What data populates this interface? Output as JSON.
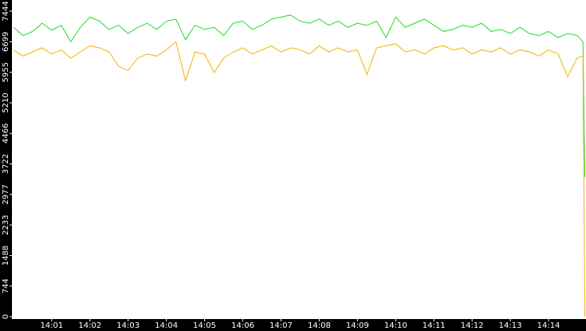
{
  "chart_data": {
    "type": "line",
    "x": [
      0,
      0.25,
      0.5,
      0.75,
      1,
      1.25,
      1.5,
      1.75,
      2,
      2.25,
      2.5,
      2.75,
      3,
      3.25,
      3.5,
      3.75,
      4,
      4.25,
      4.5,
      4.75,
      5,
      5.25,
      5.5,
      5.75,
      6,
      6.25,
      6.5,
      6.75,
      7,
      7.25,
      7.5,
      7.75,
      8,
      8.25,
      8.5,
      8.75,
      9,
      9.25,
      9.5,
      9.75,
      10,
      10.25,
      10.5,
      10.75,
      11,
      11.25,
      11.5,
      11.75,
      12,
      12.25,
      12.5,
      12.75,
      13,
      13.25,
      13.5,
      13.75,
      14,
      14.25,
      14.5,
      14.75,
      14.9,
      14.95
    ],
    "series": [
      {
        "color": "#22dd22",
        "values": [
          7050,
          6850,
          6950,
          7150,
          6980,
          7100,
          6700,
          7050,
          7300,
          7200,
          7000,
          7100,
          6900,
          7050,
          7150,
          7000,
          7200,
          7250,
          6750,
          7100,
          7000,
          7050,
          6850,
          7150,
          7200,
          7000,
          7100,
          7250,
          7300,
          7350,
          7200,
          7150,
          7250,
          7100,
          7200,
          7050,
          7150,
          7100,
          7200,
          6800,
          7300,
          7050,
          7150,
          7250,
          7100,
          6950,
          7000,
          7100,
          7050,
          7150,
          6950,
          7000,
          6900,
          7050,
          6900,
          6850,
          6950,
          6800,
          6900,
          6850,
          6700,
          3400
        ]
      },
      {
        "color": "#f0b400",
        "values": [
          6500,
          6350,
          6450,
          6550,
          6400,
          6500,
          6300,
          6450,
          6600,
          6550,
          6450,
          6100,
          6000,
          6300,
          6400,
          6350,
          6500,
          6700,
          5750,
          6450,
          6400,
          5950,
          6300,
          6450,
          6550,
          6400,
          6500,
          6600,
          6450,
          6550,
          6500,
          6400,
          6600,
          6450,
          6550,
          6450,
          6500,
          5900,
          6550,
          6600,
          6650,
          6450,
          6500,
          6400,
          6550,
          6600,
          6500,
          6550,
          6400,
          6500,
          6450,
          6550,
          6400,
          6500,
          6450,
          6350,
          6500,
          6400,
          5850,
          6300,
          6350,
          0
        ]
      }
    ],
    "xlim": [
      -0.04,
      14.98
    ],
    "xticks": [
      {
        "value": 1,
        "label": "14:01"
      },
      {
        "value": 2,
        "label": "14:02"
      },
      {
        "value": 3,
        "label": "14:03"
      },
      {
        "value": 4,
        "label": "14:04"
      },
      {
        "value": 5,
        "label": "14:05"
      },
      {
        "value": 6,
        "label": "14:06"
      },
      {
        "value": 7,
        "label": "14:07"
      },
      {
        "value": 8,
        "label": "14:08"
      },
      {
        "value": 9,
        "label": "14:09"
      },
      {
        "value": 10,
        "label": "14:10"
      },
      {
        "value": 11,
        "label": "14:11"
      },
      {
        "value": 12,
        "label": "14:12"
      },
      {
        "value": 13,
        "label": "14:13"
      },
      {
        "value": 14,
        "label": "14:14"
      }
    ],
    "ylim": [
      0,
      7444
    ],
    "yticks": [
      0,
      744,
      1488,
      2233,
      2977,
      3722,
      4466,
      5210,
      5955,
      6699,
      7444
    ],
    "grid": false
  }
}
